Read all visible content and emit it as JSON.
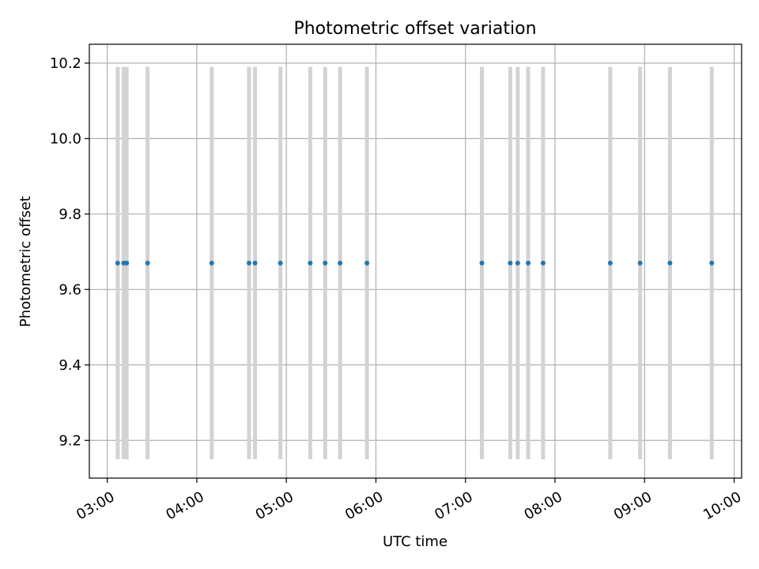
{
  "chart_data": {
    "type": "scatter",
    "title": "Photometric offset variation",
    "xlabel": "UTC time",
    "ylabel": "Photometric offset",
    "x_tick_labels": [
      "03:00",
      "04:00",
      "05:00",
      "06:00",
      "07:00",
      "08:00",
      "09:00",
      "10:00"
    ],
    "y_tick_labels": [
      "9.2",
      "9.4",
      "9.6",
      "9.8",
      "10.0",
      "10.2"
    ],
    "y_ticks": [
      9.2,
      9.4,
      9.6,
      9.8,
      10.0,
      10.2
    ],
    "xlim": [
      "02:48",
      "10:05"
    ],
    "ylim": [
      9.1,
      10.25
    ],
    "grid": true,
    "error_bar_color": "#d3d3d3",
    "marker_color": "#1f77b4",
    "series": [
      {
        "x": [
          "03:07",
          "03:11",
          "03:13",
          "03:27",
          "04:10",
          "04:35",
          "04:39",
          "04:56",
          "05:16",
          "05:26",
          "05:36",
          "05:54",
          "07:11",
          "07:30",
          "07:35",
          "07:42",
          "07:52",
          "08:37",
          "08:57",
          "09:17",
          "09:45"
        ],
        "y": [
          9.67,
          9.67,
          9.67,
          9.67,
          9.67,
          9.67,
          9.67,
          9.67,
          9.67,
          9.67,
          9.67,
          9.67,
          9.67,
          9.67,
          9.67,
          9.67,
          9.67,
          9.67,
          9.67,
          9.67,
          9.67
        ],
        "yerr_low": 9.15,
        "yerr_high": 10.19
      }
    ]
  }
}
